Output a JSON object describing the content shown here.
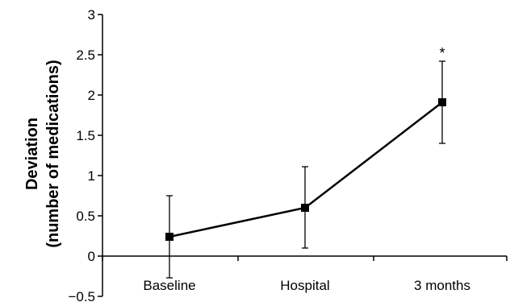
{
  "chart_data": {
    "type": "line",
    "categories": [
      "Baseline",
      "Hospital",
      "3 months"
    ],
    "series": [
      {
        "values": [
          0.24,
          0.6,
          1.91
        ],
        "error_low": [
          -0.27,
          0.1,
          1.4
        ],
        "error_high": [
          0.75,
          1.11,
          2.42
        ]
      }
    ],
    "ylabel_lines": [
      "Deviation",
      "(number of medications)"
    ],
    "xlabel": "",
    "ylim": [
      -0.5,
      3
    ],
    "yticks": [
      -0.5,
      0,
      0.5,
      1,
      1.5,
      2,
      2.5,
      3
    ],
    "ytick_labels": [
      "−0.5",
      "0",
      "0.5",
      "1",
      "1.5",
      "2",
      "2.5",
      "3"
    ],
    "annotations": [
      {
        "category": "3 months",
        "text": "*"
      }
    ],
    "grid": false,
    "marker": "square",
    "color": "#000000"
  }
}
